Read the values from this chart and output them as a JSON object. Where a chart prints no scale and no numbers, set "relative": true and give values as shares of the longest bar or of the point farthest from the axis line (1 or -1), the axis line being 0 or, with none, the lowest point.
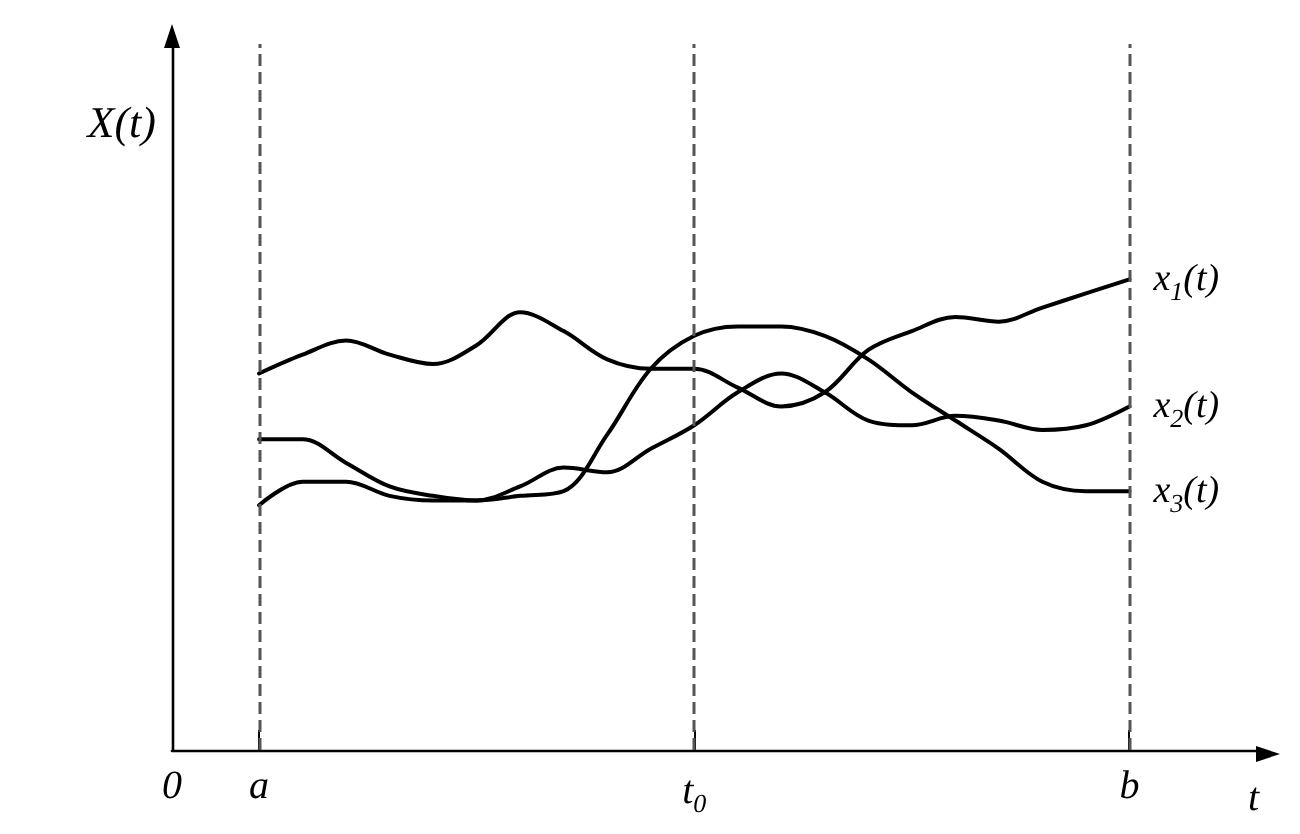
{
  "chart_data": {
    "type": "line",
    "relative": true,
    "xlabel": "t",
    "ylabel": "X(t)",
    "categories": [
      "0",
      null,
      "a",
      null,
      null,
      null,
      null,
      null,
      null,
      null,
      null,
      null,
      "t$_{0}$",
      null,
      null,
      null,
      null,
      null,
      null,
      null,
      null,
      null,
      "b",
      null,
      null,
      null
    ],
    "series": [
      {
        "name": "x$_{1}$(t)",
        "color": "#000000",
        "values": [
          null,
          null,
          0.8,
          0.84,
          0.87,
          0.84,
          0.82,
          0.86,
          0.93,
          0.89,
          0.83,
          0.81,
          0.81,
          0.77,
          0.73,
          0.76,
          0.85,
          0.89,
          0.92,
          0.91,
          0.94,
          0.97,
          1,
          null,
          null,
          null
        ]
      },
      {
        "name": "x$_{2}$(t)",
        "color": "#000000",
        "values": [
          null,
          null,
          0.66,
          0.66,
          0.61,
          0.56,
          0.54,
          0.53,
          0.56,
          0.6,
          0.59,
          0.64,
          0.69,
          0.76,
          0.8,
          0.76,
          0.7,
          0.69,
          0.71,
          0.7,
          0.68,
          0.69,
          0.73,
          null,
          null,
          null
        ]
      },
      {
        "name": "x$_{3}$(t)",
        "color": "#000000",
        "values": [
          null,
          null,
          0.52,
          0.57,
          0.57,
          0.54,
          0.53,
          0.53,
          0.54,
          0.55,
          0.67,
          0.81,
          0.88,
          0.9,
          0.9,
          0.88,
          0.83,
          0.76,
          0.7,
          0.64,
          0.57,
          0.55,
          0.55,
          null,
          null,
          null
        ]
      }
    ],
    "ref_lines": [
      {
        "axis": "x",
        "value": "a",
        "color": "#555555",
        "line_style": "dashed"
      },
      {
        "axis": "x",
        "value": "t$_{0}$",
        "color": "#555555",
        "line_style": "dashed"
      },
      {
        "axis": "x",
        "value": "b",
        "color": "#555555",
        "line_style": "dashed"
      }
    ],
    "grid": false,
    "legend": false,
    "marker": "none",
    "line_style": "solid"
  }
}
